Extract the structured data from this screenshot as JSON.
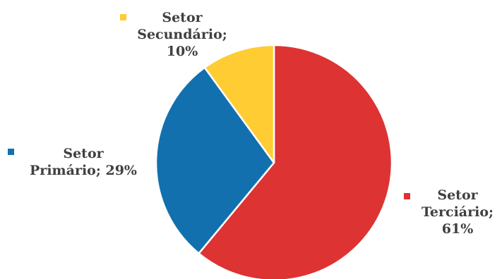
{
  "chart_data": {
    "type": "pie",
    "slices": [
      {
        "name": "Setor Terciário",
        "value": 61,
        "color": "#dd3333",
        "label_lines": [
          "Setor",
          "Terciário;",
          "61%"
        ]
      },
      {
        "name": "Setor Primário",
        "value": 29,
        "color": "#1270ae",
        "label_lines": [
          "Setor",
          "Primário; 29%"
        ]
      },
      {
        "name": "Setor Secundário",
        "value": 10,
        "color": "#ffcc33",
        "label_lines": [
          "Setor",
          "Secundário;",
          "10%"
        ]
      }
    ],
    "unit": "%",
    "start_angle_deg": 0,
    "direction": "clockwise",
    "slice_border_color": "#ffffff"
  }
}
